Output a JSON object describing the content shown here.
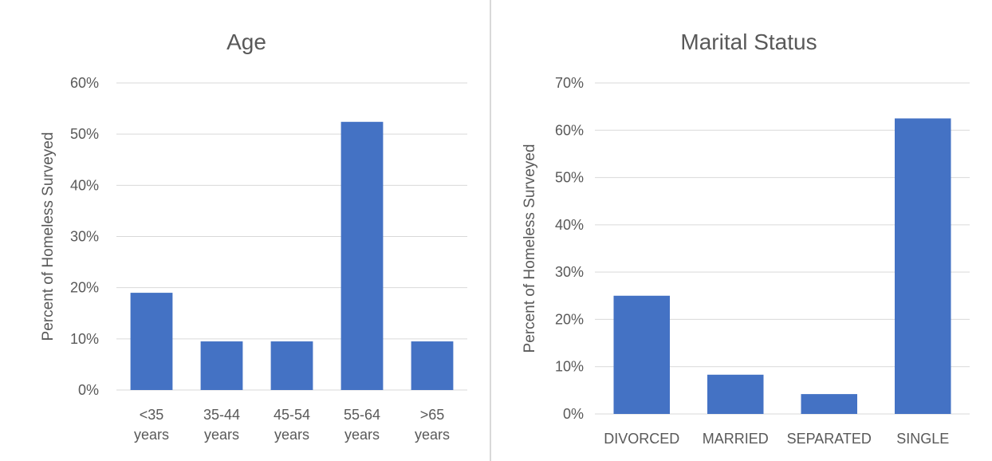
{
  "chart_data": [
    {
      "type": "bar",
      "title": "Age",
      "xlabel": "",
      "ylabel": "Percent of Homeless Surveyed",
      "categories": [
        [
          "<35",
          "years"
        ],
        [
          "35-44",
          "years"
        ],
        [
          "45-54",
          "years"
        ],
        [
          "55-64",
          "years"
        ],
        [
          ">65",
          "years"
        ]
      ],
      "values": [
        19.0,
        9.5,
        9.5,
        52.4,
        9.5
      ],
      "ylim": [
        0,
        60
      ],
      "yticks": [
        "0%",
        "10%",
        "20%",
        "30%",
        "40%",
        "50%",
        "60%"
      ],
      "grid": true,
      "bar_color": "#4472C4"
    },
    {
      "type": "bar",
      "title": "Marital Status",
      "xlabel": "",
      "ylabel": "Percent of Homeless Surveyed",
      "categories": [
        [
          "DIVORCED"
        ],
        [
          "MARRIED"
        ],
        [
          "SEPARATED"
        ],
        [
          "SINGLE"
        ]
      ],
      "values": [
        25.0,
        8.3,
        4.2,
        62.5
      ],
      "ylim": [
        0,
        70
      ],
      "yticks": [
        "0%",
        "10%",
        "20%",
        "30%",
        "40%",
        "50%",
        "60%",
        "70%"
      ],
      "grid": true,
      "bar_color": "#4472C4"
    }
  ]
}
